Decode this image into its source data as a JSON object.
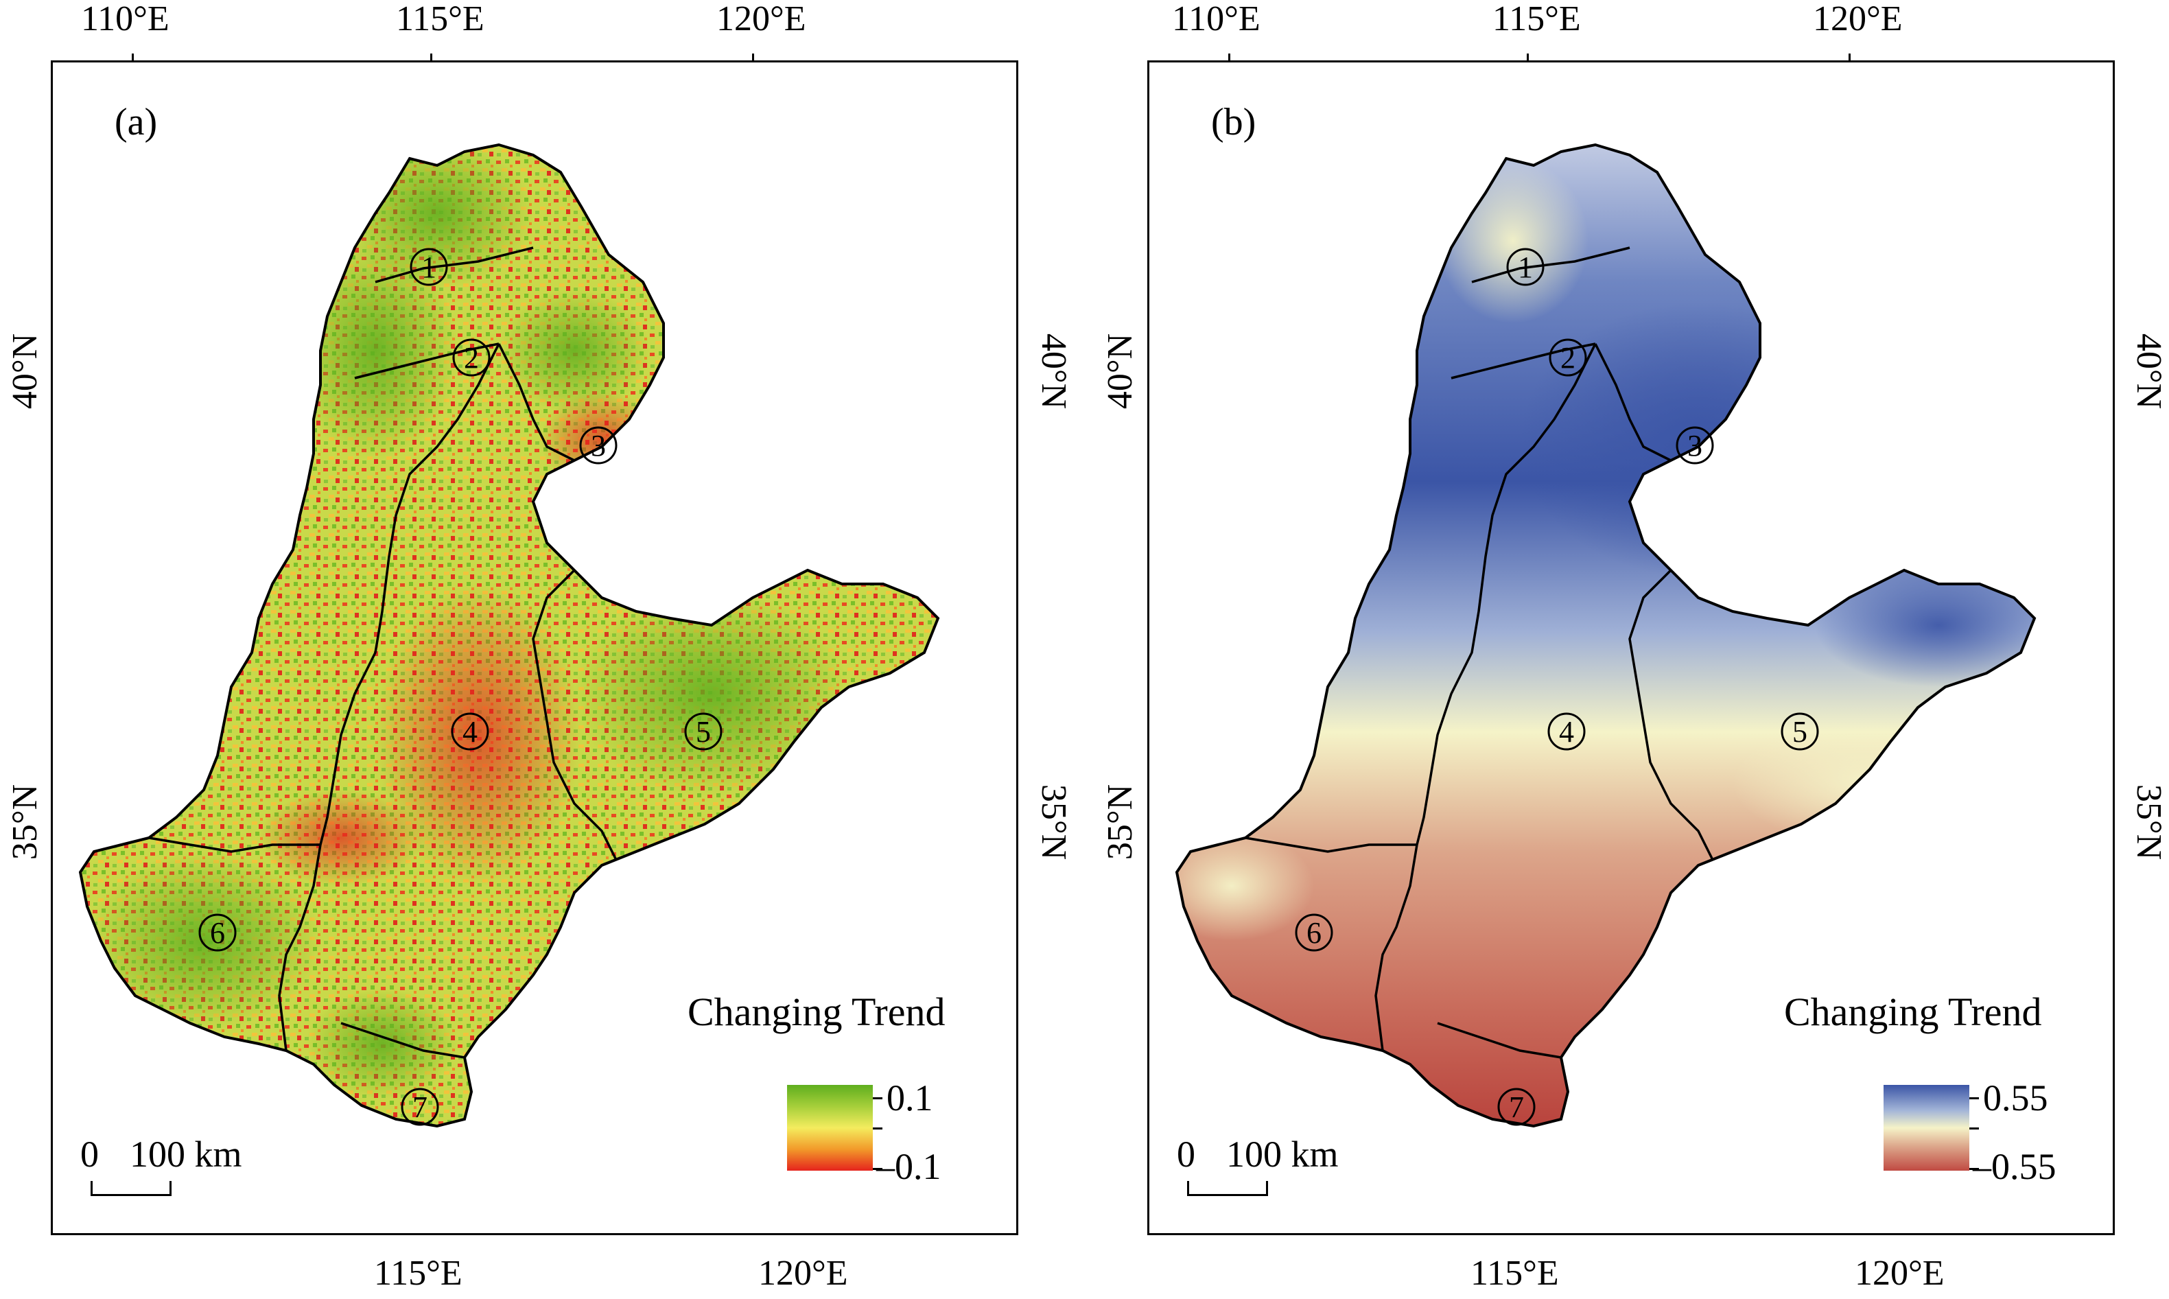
{
  "panels": [
    {
      "id": "a",
      "letter": "(a)",
      "top_lon_labels": [
        "110°E",
        "115°E",
        "120°E"
      ],
      "bottom_lon_labels": [
        "115°E",
        "120°E"
      ],
      "lat_labels": [
        "40°N",
        "35°N"
      ],
      "legend": {
        "title": "Changing Trend",
        "max": "0.1",
        "min": "–0.1",
        "colors": [
          "#5fae1e",
          "#a6cf3a",
          "#f4ec5e",
          "#f29a2a",
          "#e5241d"
        ]
      },
      "scale": {
        "zero": "0",
        "distance": "100 km"
      },
      "regions": [
        "1",
        "2",
        "3",
        "4",
        "5",
        "6",
        "7"
      ]
    },
    {
      "id": "b",
      "letter": "(b)",
      "top_lon_labels": [
        "110°E",
        "115°E",
        "120°E"
      ],
      "bottom_lon_labels": [
        "115°E",
        "120°E"
      ],
      "lat_labels": [
        "40°N",
        "35°N"
      ],
      "legend": {
        "title": "Changing Trend",
        "max": "0.55",
        "min": "–0.55",
        "colors": [
          "#3b55a6",
          "#a4b6d8",
          "#f5f3c8",
          "#dca58a",
          "#c04a42"
        ]
      },
      "scale": {
        "zero": "0",
        "distance": "100 km"
      },
      "regions": [
        "1",
        "2",
        "3",
        "4",
        "5",
        "6",
        "7"
      ]
    }
  ]
}
